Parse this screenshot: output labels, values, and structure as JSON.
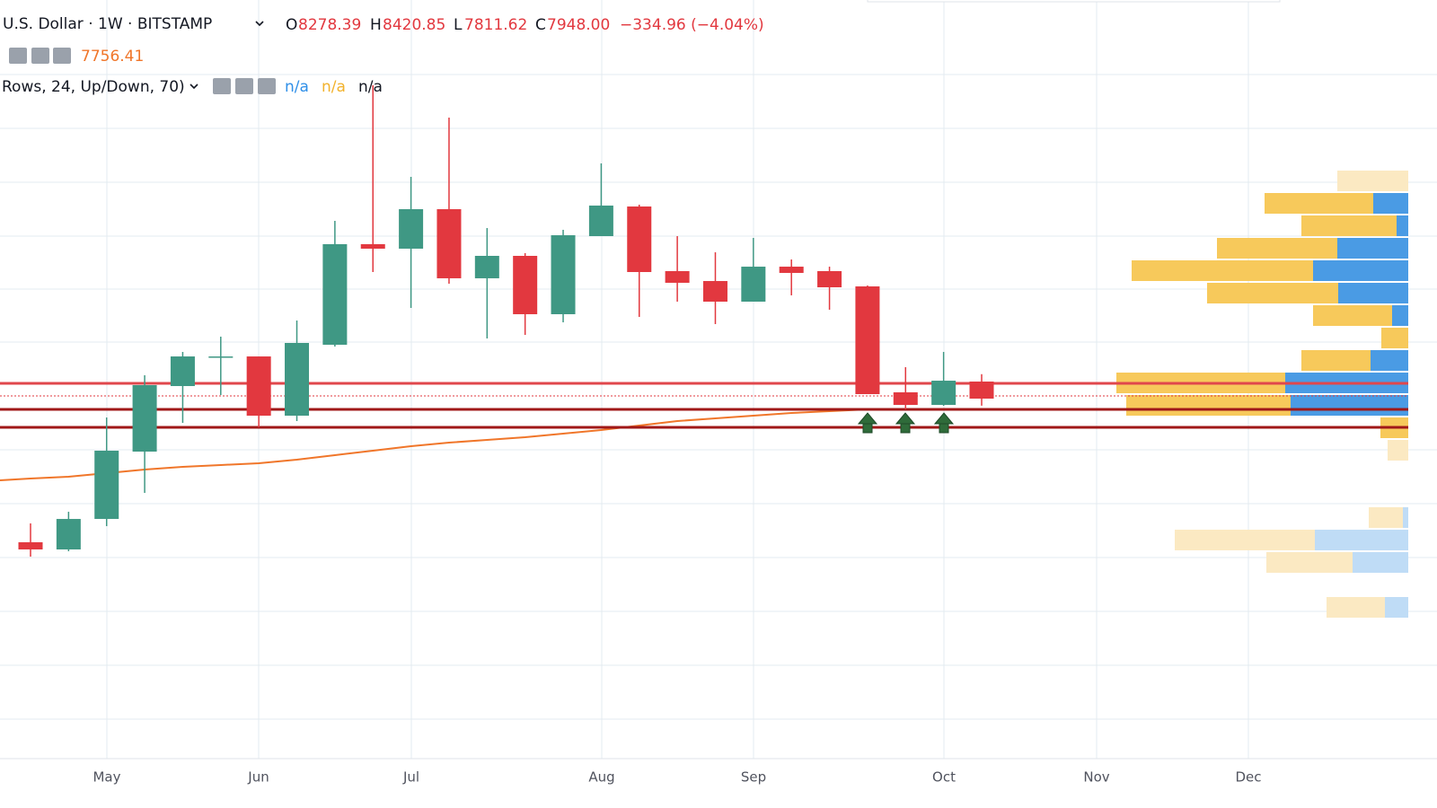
{
  "header": {
    "symbol": "U.S. Dollar · 1W · BITSTAMP",
    "o_key": "O",
    "h_key": "H",
    "l_key": "L",
    "c_key": "C",
    "o": "8278.39",
    "h": "8420.85",
    "l": "7811.62",
    "c": "7948.00",
    "change": "−334.96 (−4.04%)",
    "ma_value": "7756.41",
    "profile": "Rows, 24, Up/Down, 70)",
    "na_up": "n/a",
    "na_down": "n/a",
    "na_total": "n/a"
  },
  "chart_data": {
    "type": "candlestick",
    "up_color": "#3f9884",
    "down_color": "#e2383f",
    "ylim": [
      1070,
      15660
    ],
    "open": [
      5169,
      5030,
      5620,
      6923,
      8191,
      8747,
      8764,
      7618,
      8990,
      10936,
      10849,
      11613,
      10276,
      10710,
      9581,
      11092,
      11665,
      10415,
      10223,
      9824,
      10501,
      10415,
      10119,
      8070,
      7826,
      8278.39
    ],
    "high": [
      5534,
      5759,
      7583,
      8400,
      8851,
      9147,
      8764,
      9459,
      11387,
      14010,
      12238,
      13385,
      11248,
      10762,
      11214,
      12499,
      11700,
      11092,
      10779,
      11057,
      10640,
      10501,
      10137,
      8556,
      8851,
      8420.85
    ],
    "low": [
      4891,
      4995,
      5481,
      6124,
      7479,
      8017,
      7392,
      7514,
      8955,
      10397,
      9702,
      10171,
      9112,
      9181,
      9424,
      11092,
      9529,
      9824,
      9390,
      9824,
      9946,
      9668,
      8035,
      7740,
      7809,
      7811.62
    ],
    "close": [
      5030,
      5620,
      6941,
      8209,
      8764,
      8764,
      7618,
      9025,
      10936,
      10849,
      11613,
      10276,
      10710,
      9581,
      11109,
      11683,
      10397,
      10189,
      9824,
      10501,
      10380,
      10102,
      8035,
      7826,
      8295,
      7948.0
    ],
    "ma": {
      "color": "#f0762a",
      "values": [
        6402,
        6437,
        6506,
        6576,
        6628,
        6663,
        6698,
        6767,
        6854,
        6941,
        7028,
        7097,
        7149,
        7201,
        7271,
        7340,
        7427,
        7514,
        7566,
        7618,
        7670,
        7705,
        7740,
        null,
        null,
        null
      ]
    },
    "levels": [
      {
        "value": 8244,
        "color": "#e0474c"
      },
      {
        "value": 7740,
        "color": "#a01818"
      },
      {
        "value": 7392,
        "color": "#a01818"
      }
    ],
    "months": [
      "May",
      "Jun",
      "Jul",
      "Aug",
      "Sep",
      "Oct",
      "Nov",
      "Dec"
    ]
  }
}
